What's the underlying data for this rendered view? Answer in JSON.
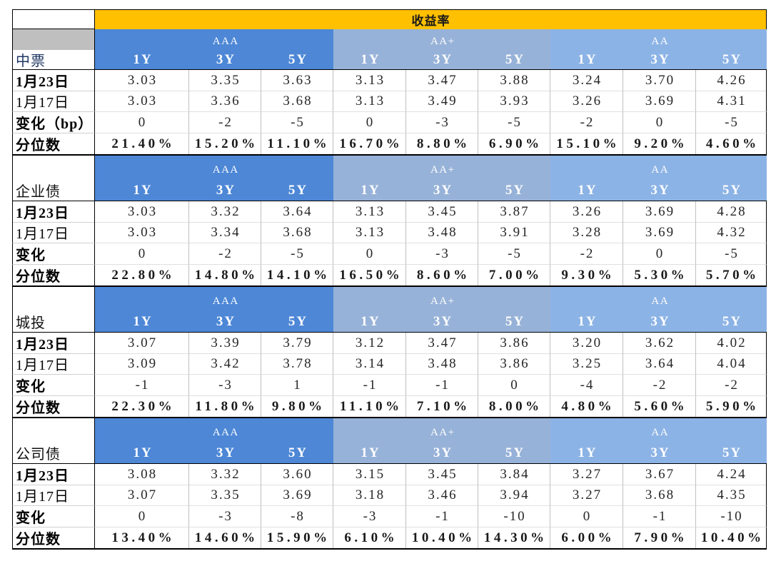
{
  "colors": {
    "title_bg": "#FFC000",
    "corner_gray": "#BFBFBF",
    "section1_label_text": "#203864"
  },
  "chart_data": {
    "type": "table",
    "title": "收益率",
    "rating_groups": [
      {
        "name": "AAA",
        "color": "#4D87D6"
      },
      {
        "name": "AA+",
        "color": "#97B2D8"
      },
      {
        "name": "AA",
        "color": "#8CB3E5"
      }
    ],
    "tenors": [
      "1Y",
      "3Y",
      "5Y"
    ],
    "sections": [
      {
        "name": "中票",
        "rows": [
          {
            "label": "1月23日",
            "values": [
              "3.03",
              "3.35",
              "3.63",
              "3.13",
              "3.47",
              "3.88",
              "3.24",
              "3.70",
              "4.26"
            ]
          },
          {
            "label": "1月17日",
            "values": [
              "3.03",
              "3.36",
              "3.68",
              "3.13",
              "3.49",
              "3.93",
              "3.26",
              "3.69",
              "4.31"
            ]
          },
          {
            "label": "变化（bp）",
            "values": [
              "0",
              "-2",
              "-5",
              "0",
              "-3",
              "-5",
              "-2",
              "0",
              "-5"
            ]
          },
          {
            "label": "分位数",
            "values": [
              "21.40%",
              "15.20%",
              "11.10%",
              "16.70%",
              "8.80%",
              "6.90%",
              "15.10%",
              "9.20%",
              "4.60%"
            ]
          }
        ]
      },
      {
        "name": "企业债",
        "rows": [
          {
            "label": "1月23日",
            "values": [
              "3.03",
              "3.32",
              "3.64",
              "3.13",
              "3.45",
              "3.87",
              "3.26",
              "3.69",
              "4.28"
            ]
          },
          {
            "label": "1月17日",
            "values": [
              "3.03",
              "3.34",
              "3.68",
              "3.13",
              "3.48",
              "3.91",
              "3.28",
              "3.69",
              "4.32"
            ]
          },
          {
            "label": "变化",
            "values": [
              "0",
              "-2",
              "-5",
              "0",
              "-3",
              "-5",
              "-2",
              "0",
              "-5"
            ]
          },
          {
            "label": "分位数",
            "values": [
              "22.80%",
              "14.80%",
              "14.10%",
              "16.50%",
              "8.60%",
              "7.00%",
              "9.30%",
              "5.30%",
              "5.70%"
            ]
          }
        ]
      },
      {
        "name": "城投",
        "rows": [
          {
            "label": "1月23日",
            "values": [
              "3.07",
              "3.39",
              "3.79",
              "3.12",
              "3.47",
              "3.86",
              "3.20",
              "3.62",
              "4.02"
            ]
          },
          {
            "label": "1月17日",
            "values": [
              "3.09",
              "3.42",
              "3.78",
              "3.14",
              "3.48",
              "3.86",
              "3.25",
              "3.64",
              "4.04"
            ]
          },
          {
            "label": "变化",
            "values": [
              "-1",
              "-3",
              "1",
              "-1",
              "-1",
              "0",
              "-4",
              "-2",
              "-2"
            ]
          },
          {
            "label": "分位数",
            "values": [
              "22.30%",
              "11.80%",
              "9.80%",
              "11.10%",
              "7.10%",
              "8.00%",
              "4.80%",
              "5.60%",
              "5.90%"
            ]
          }
        ]
      },
      {
        "name": "公司债",
        "rows": [
          {
            "label": "1月23日",
            "values": [
              "3.08",
              "3.32",
              "3.60",
              "3.15",
              "3.45",
              "3.84",
              "3.27",
              "3.67",
              "4.24"
            ]
          },
          {
            "label": "1月17日",
            "values": [
              "3.07",
              "3.35",
              "3.69",
              "3.18",
              "3.46",
              "3.94",
              "3.27",
              "3.68",
              "4.35"
            ]
          },
          {
            "label": "变化",
            "values": [
              "0",
              "-3",
              "-8",
              "-3",
              "-1",
              "-10",
              "0",
              "-1",
              "-10"
            ]
          },
          {
            "label": "分位数",
            "values": [
              "13.40%",
              "14.60%",
              "15.90%",
              "6.10%",
              "10.40%",
              "14.30%",
              "6.00%",
              "7.90%",
              "10.40%"
            ]
          }
        ]
      }
    ]
  }
}
